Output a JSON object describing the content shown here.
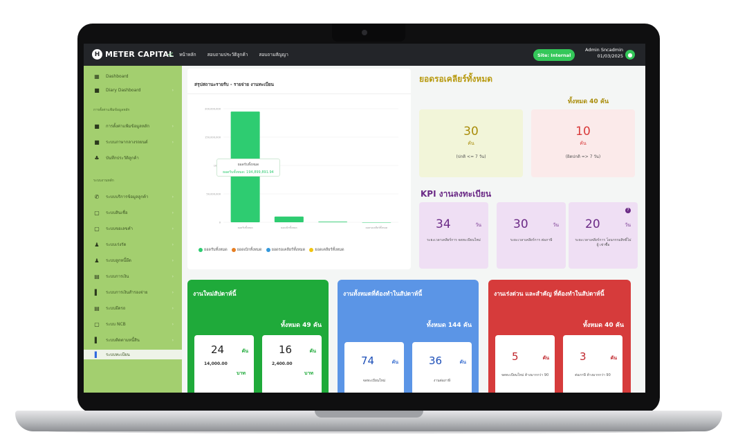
{
  "topbar": {
    "brand": "METER CAPITAL",
    "brand_mark": "H",
    "collapse_icon": "<",
    "nav": [
      "หน้าหลัก",
      "สอบถามประวัติลูกค้า",
      "สอบถามสัญญา"
    ],
    "site_badge": "Site: Internal",
    "admin_name": "Admin Sncadmin",
    "admin_date": "01/03/2025"
  },
  "sidebar": {
    "items": [
      {
        "label": "Dashboard",
        "icon": "dashboard-icon"
      },
      {
        "label": "Diary Dashboard",
        "icon": "folder-icon"
      },
      {
        "label": "การตั้งค่าแฟ้มข้อมูลหลัก",
        "icon": "folder-icon"
      },
      {
        "label": "ระบบภาษากลางรถยนต์",
        "icon": "folder-icon"
      },
      {
        "label": "บันทึกประวัติลูกค้า",
        "icon": "people-icon"
      },
      {
        "label": "ระบบบริการข้อมูลลูกค้า",
        "icon": "phone-icon"
      },
      {
        "label": "ระบบสินเชื่อ",
        "icon": "doc-icon"
      },
      {
        "label": "ระบบขอเลขคำ",
        "icon": "doc-icon"
      },
      {
        "label": "ระบบเร่งรัด",
        "icon": "person-icon"
      },
      {
        "label": "ระบบลูกหนี้ยึด",
        "icon": "person-icon"
      },
      {
        "label": "ระบบการเงิน",
        "icon": "money-icon"
      },
      {
        "label": "ระบบการเงินสำรองจ่าย",
        "icon": "book-icon"
      },
      {
        "label": "ระบบยึดรถ",
        "icon": "money-icon"
      },
      {
        "label": "ระบบ NCB",
        "icon": "doc-icon"
      },
      {
        "label": "ระบบติดตามหนี้สิน",
        "icon": "book-icon"
      },
      {
        "label": "ระบบทะเบียน",
        "icon": "book-icon"
      }
    ],
    "section_1": "การตั้งค่าแฟ้มข้อมูลหลัก",
    "section_2": "ระบบงานหลัก"
  },
  "chart_card": {
    "title": "สรุปสถานะรายรับ - รายจ่าย งานทะเบียน",
    "tooltip_title": "ยอดรับทั้งหมด",
    "tooltip_value": "ยอดรับทั้งหมด: 194,899,891.94",
    "legend": [
      {
        "label": "ยอดรับทั้งหมด",
        "color": "#2ecc71"
      },
      {
        "label": "ยอดเบิกทั้งหมด",
        "color": "#e67e22"
      },
      {
        "label": "ยอดรอเคลียร์ทั้งหมด",
        "color": "#3498db"
      },
      {
        "label": "ยอดเคลียร์ทั้งหมด",
        "color": "#f1c40f"
      }
    ],
    "x_labels": [
      "ยอดรับทั้งหมด",
      "ยอดเบิกทั้งหมด",
      "ยอดรอเคลียร์ทั้งหมด"
    ],
    "y_labels": [
      "200,000,000",
      "150,000,000",
      "100,0",
      "50,000,000",
      "0"
    ]
  },
  "chart_data": {
    "type": "bar",
    "categories": [
      "ยอดรับทั้งหมด",
      "ยอดเบิกทั้งหมด",
      "ยอดรอเคลียร์ทั้งหมด",
      "ยอดเคลียร์ทั้งหมด"
    ],
    "values": [
      194899891.94,
      10000000,
      1000000,
      0
    ],
    "ylim": [
      0,
      200000000
    ]
  },
  "clear": {
    "title": "ยอดรอเคลียร์ทั้งหมด",
    "total": "ทั้งหมด 40 คัน",
    "cards": [
      {
        "num": "30",
        "unit": "คัน",
        "sub": "(ปกติ <= 7 วัน)",
        "bg": "#f2f5d9",
        "color": "#a98c0a"
      },
      {
        "num": "10",
        "unit": "คัน",
        "sub": "(ผิดปกติ => 7 วัน)",
        "bg": "#fbeaea",
        "color": "#d93a3a"
      }
    ]
  },
  "kpi": {
    "title": "KPI งานลงทะเบียน",
    "cards": [
      {
        "num": "34",
        "unit": "วัน",
        "sub": "ระยะเวลาเคลียร์การ จดทะเบียนใหม่"
      },
      {
        "num": "30",
        "unit": "วัน",
        "sub": "ระยะเวลาเคลียร์การ ต่อภาษี"
      },
      {
        "num": "20",
        "unit": "วัน",
        "sub": "ระยะเวลาเคลียร์การ โอนกรรมสิทธิ์ไม่ผู้ เช่าซื้อ"
      }
    ]
  },
  "week_new": {
    "title": "งานใหม่สัปดาห์นี้",
    "total": "ทั้งหมด 49 คัน",
    "cards": [
      {
        "num": "24",
        "unit": "คัน",
        "amount": "14,000.00",
        "baht": "บาท"
      },
      {
        "num": "16",
        "unit": "คัน",
        "amount": "2,400.00",
        "baht": "บาท"
      }
    ]
  },
  "week_all": {
    "title": "งานทั้งหมดที่ต้องทำในสัปดาห์นี้",
    "total": "ทั้งหมด 144 คัน",
    "cards": [
      {
        "num": "74",
        "unit": "คัน",
        "sub": "จดทะเบียนใหม่"
      },
      {
        "num": "36",
        "unit": "คัน",
        "sub": "งานต่อภาษี"
      }
    ]
  },
  "urgent": {
    "title": "งานเร่งด่วน และสำคัญ ที่ต้องทำในสัปดาห์นี้",
    "total": "ทั้งหมด 40 คัน",
    "cards": [
      {
        "num": "5",
        "unit": "คัน",
        "sub": "จดทะเบียนใหม่ ค้างมากกว่า 90"
      },
      {
        "num": "3",
        "unit": "คัน",
        "sub": "ต่อภาษี ค้างมากกว่า 90"
      }
    ]
  }
}
